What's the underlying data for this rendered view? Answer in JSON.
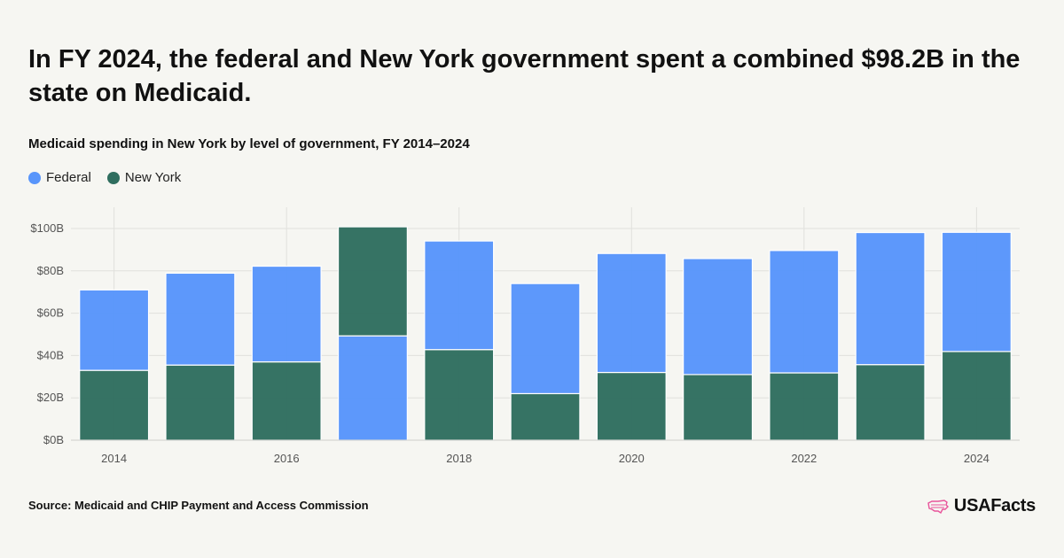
{
  "headline": "In FY 2024, the federal and New York government spent a combined $98.2B in the state on Medicaid.",
  "subtitle": "Medicaid spending in New York by level of government, FY 2014–2024",
  "source": "Source: Medicaid and CHIP Payment and Access Commission",
  "brand": {
    "name": "USAFacts",
    "icon": "us-map-icon"
  },
  "colors": {
    "federal": "#5895fb",
    "new_york": "#2f6e5f",
    "grid": "#e0e0dc",
    "background": "#f6f6f2"
  },
  "chart_data": {
    "type": "bar",
    "stacked": true,
    "categories": [
      "2014",
      "2015",
      "2016",
      "2017",
      "2018",
      "2019",
      "2020",
      "2021",
      "2022",
      "2023",
      "2024"
    ],
    "x_tick_labels": [
      "2014",
      "",
      "2016",
      "",
      "2018",
      "",
      "2020",
      "",
      "2022",
      "",
      "2024"
    ],
    "series": [
      {
        "name": "New York",
        "color": "#2f6e5f",
        "values": [
          33,
          35.5,
          37,
          51.5,
          42.8,
          22,
          32,
          31,
          31.8,
          35.7,
          41.9
        ]
      },
      {
        "name": "Federal",
        "color": "#5895fb",
        "values": [
          38,
          43.4,
          45.2,
          49.3,
          51.3,
          52,
          56.2,
          54.8,
          57.8,
          62.4,
          56.3
        ]
      }
    ],
    "segment_order_by_category": [
      [
        "New York",
        "Federal"
      ],
      [
        "New York",
        "Federal"
      ],
      [
        "New York",
        "Federal"
      ],
      [
        "Federal",
        "New York"
      ],
      [
        "New York",
        "Federal"
      ],
      [
        "New York",
        "Federal"
      ],
      [
        "New York",
        "Federal"
      ],
      [
        "New York",
        "Federal"
      ],
      [
        "New York",
        "Federal"
      ],
      [
        "New York",
        "Federal"
      ],
      [
        "New York",
        "Federal"
      ]
    ],
    "legend": [
      "Federal",
      "New York"
    ],
    "legend_position": "top-left",
    "ylim": [
      0,
      100
    ],
    "y_ticks": [
      0,
      20,
      40,
      60,
      80,
      100
    ],
    "y_tick_labels": [
      "$0B",
      "$20B",
      "$40B",
      "$60B",
      "$80B",
      "$100B"
    ],
    "grid": true,
    "xlabel": "",
    "ylabel": ""
  }
}
